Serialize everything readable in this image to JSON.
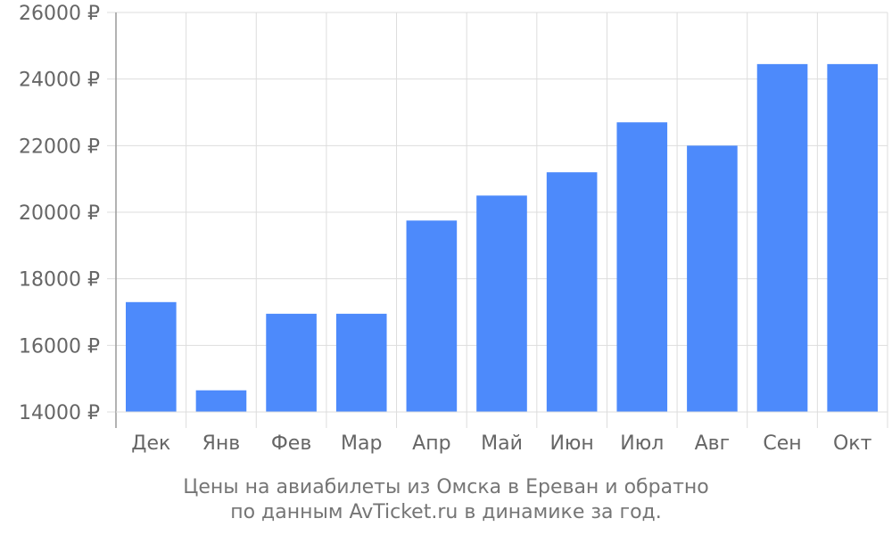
{
  "chart_data": {
    "type": "bar",
    "categories": [
      "Дек",
      "Янв",
      "Фев",
      "Мар",
      "Апр",
      "Май",
      "Июн",
      "Июл",
      "Авг",
      "Сен",
      "Окт"
    ],
    "values": [
      17300,
      14650,
      16950,
      16950,
      19750,
      20500,
      21200,
      22700,
      22000,
      24450,
      24450
    ],
    "ylim": [
      14000,
      26000
    ],
    "yticks": [
      14000,
      16000,
      18000,
      20000,
      22000,
      24000,
      26000
    ],
    "ytick_suffix": " ₽",
    "grid": true,
    "bar_color": "#4d8afb",
    "grid_color": "#dddddd",
    "axis_color": "#999999"
  },
  "caption": {
    "line1": "Цены на авиабилеты из Омска в Ереван и обратно",
    "line2": "по данным AvTicket.ru в динамике за год."
  }
}
